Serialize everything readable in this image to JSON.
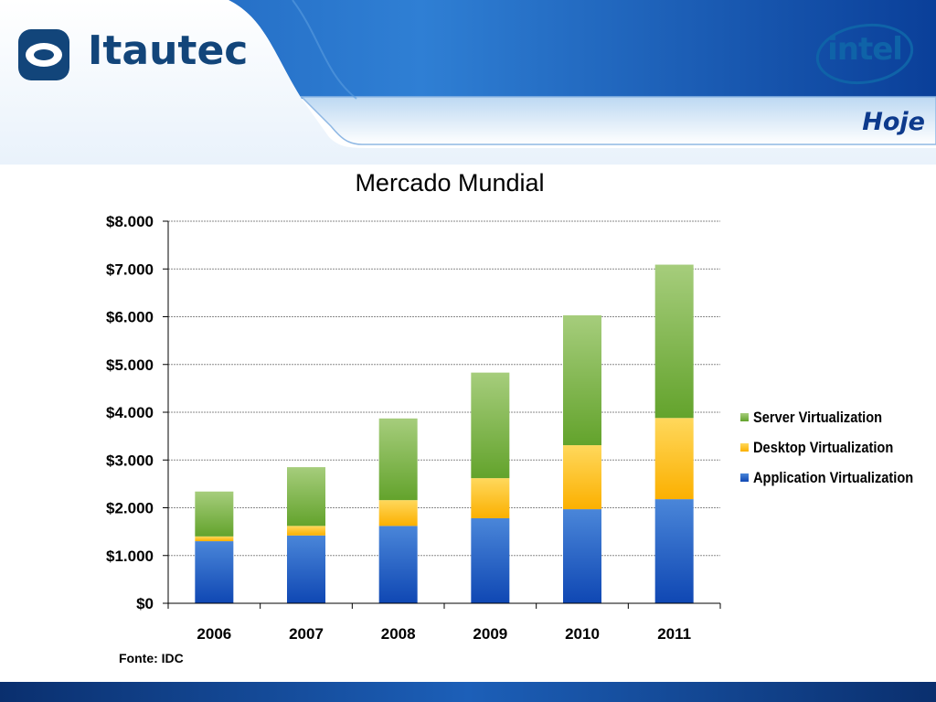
{
  "header": {
    "brand_left": "Itautec",
    "brand_right": "intel",
    "section_title": "Hoje"
  },
  "chart_data": {
    "type": "bar",
    "stacked": true,
    "title": "Mercado Mundial",
    "categories": [
      "2006",
      "2007",
      "2008",
      "2009",
      "2010",
      "2011"
    ],
    "series": [
      {
        "name": "Application Virtualization",
        "values": [
          1300,
          1420,
          1620,
          1780,
          1970,
          2180
        ],
        "color": "#1f5fc6"
      },
      {
        "name": "Desktop Virtualization",
        "values": [
          100,
          200,
          540,
          840,
          1340,
          1700
        ],
        "color": "#ffc61e"
      },
      {
        "name": "Server Virtualization",
        "values": [
          940,
          1230,
          1710,
          2210,
          2720,
          3210
        ],
        "color": "#70ad38"
      }
    ],
    "yticks": [
      "$0",
      "$1.000",
      "$2.000",
      "$3.000",
      "$4.000",
      "$5.000",
      "$6.000",
      "$7.000",
      "$8.000"
    ],
    "ylim": [
      0,
      8000
    ],
    "grid": true,
    "legend": "right",
    "legend_order": [
      "Server Virtualization",
      "Desktop Virtualization",
      "Application Virtualization"
    ]
  },
  "source": "Fonte: IDC"
}
